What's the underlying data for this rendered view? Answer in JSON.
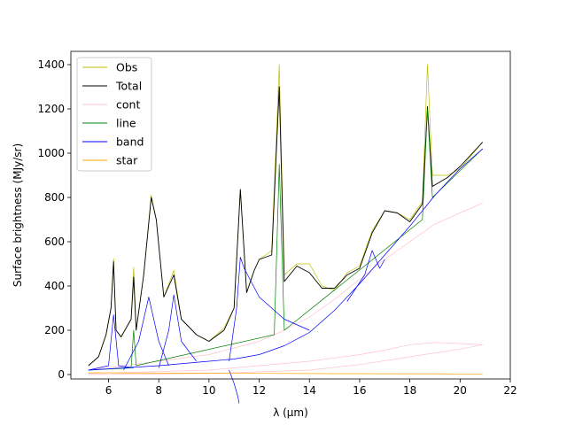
{
  "chart_data": {
    "type": "line",
    "title": "",
    "xlabel": "λ (μm)",
    "ylabel": "Surface brightness (MJy/sr)",
    "xlim": [
      4.5,
      22
    ],
    "ylim": [
      -20,
      1460
    ],
    "xticks": [
      6,
      8,
      10,
      12,
      14,
      16,
      18,
      20,
      22
    ],
    "yticks": [
      0,
      200,
      400,
      600,
      800,
      1000,
      1200,
      1400
    ],
    "grid": false,
    "legend_position": "top-left",
    "legend": [
      {
        "name": "Obs",
        "color": "#bfbf00"
      },
      {
        "name": "Total",
        "color": "#000000"
      },
      {
        "name": "cont",
        "color": "#ffc0cb"
      },
      {
        "name": "line",
        "color": "#008000"
      },
      {
        "name": "band",
        "color": "#0000ff"
      },
      {
        "name": "star",
        "color": "#ffa500"
      }
    ],
    "series": [
      {
        "name": "Obs",
        "color": "#bfbf00",
        "x": [
          5.2,
          5.6,
          5.9,
          6.1,
          6.2,
          6.3,
          6.5,
          6.9,
          7.0,
          7.1,
          7.4,
          7.7,
          7.9,
          8.2,
          8.6,
          8.9,
          9.5,
          10.0,
          10.6,
          11.0,
          11.25,
          11.5,
          11.8,
          12.0,
          12.5,
          12.8,
          13.0,
          13.5,
          14.0,
          14.5,
          15.0,
          15.5,
          16.0,
          16.5,
          17.0,
          17.5,
          18.0,
          18.5,
          18.7,
          18.9,
          19.5,
          20.0,
          20.9
        ],
        "y": [
          40,
          80,
          180,
          300,
          525,
          200,
          170,
          250,
          485,
          200,
          450,
          810,
          700,
          350,
          470,
          250,
          180,
          150,
          210,
          300,
          840,
          370,
          470,
          520,
          560,
          1400,
          450,
          500,
          500,
          400,
          380,
          460,
          490,
          650,
          740,
          730,
          700,
          780,
          1400,
          900,
          900,
          930,
          1050
        ]
      },
      {
        "name": "Total",
        "color": "#000000",
        "x": [
          5.2,
          5.6,
          5.9,
          6.1,
          6.2,
          6.3,
          6.5,
          6.9,
          7.0,
          7.1,
          7.4,
          7.7,
          7.9,
          8.2,
          8.6,
          8.9,
          9.5,
          10.0,
          10.6,
          11.0,
          11.25,
          11.5,
          11.8,
          12.0,
          12.5,
          12.8,
          13.0,
          13.5,
          14.0,
          14.5,
          15.0,
          15.5,
          16.0,
          16.5,
          17.0,
          17.5,
          18.0,
          18.5,
          18.7,
          18.9,
          19.5,
          20.0,
          20.9
        ],
        "y": [
          40,
          80,
          180,
          300,
          510,
          200,
          170,
          250,
          440,
          200,
          450,
          800,
          700,
          350,
          450,
          250,
          180,
          150,
          200,
          300,
          835,
          370,
          470,
          520,
          540,
          1300,
          420,
          490,
          460,
          390,
          390,
          450,
          480,
          640,
          740,
          730,
          690,
          770,
          1210,
          850,
          890,
          940,
          1050
        ]
      },
      {
        "name": "cont",
        "color": "#ffc0cb",
        "x": [
          5.2,
          8.0,
          10.0,
          12.0,
          13.0,
          14.0,
          15.0,
          16.0,
          17.0,
          18.0,
          19.0,
          20.0,
          20.9
        ],
        "y": [
          20,
          60,
          90,
          150,
          200,
          260,
          340,
          430,
          520,
          600,
          680,
          730,
          775
        ]
      },
      {
        "name": "cont",
        "color": "#ffc0cb",
        "x": [
          5.2,
          10,
          12,
          14,
          16,
          17,
          18,
          19,
          20,
          20.9
        ],
        "y": [
          5,
          20,
          40,
          60,
          90,
          110,
          135,
          145,
          140,
          135
        ]
      },
      {
        "name": "cont",
        "color": "#ffc0cb",
        "x": [
          5.2,
          10,
          14,
          16,
          18,
          20,
          20.9
        ],
        "y": [
          0,
          5,
          20,
          45,
          80,
          115,
          135
        ]
      },
      {
        "name": "line",
        "color": "#008000",
        "x": [
          5.2,
          6.9,
          7.0,
          7.1,
          12.6,
          12.8,
          13.0,
          18.5,
          18.7,
          18.9,
          20.9
        ],
        "y": [
          20,
          30,
          200,
          40,
          180,
          950,
          200,
          700,
          1200,
          800,
          1020
        ]
      },
      {
        "name": "band",
        "color": "#0000ff",
        "x": [
          5.2,
          8.0,
          10.0,
          11.0,
          12.0,
          13.0,
          14.0,
          15.0,
          16.0,
          17.0,
          18.0,
          19.0,
          20.0,
          20.9
        ],
        "y": [
          20,
          40,
          60,
          70,
          90,
          130,
          190,
          290,
          410,
          540,
          670,
          810,
          930,
          1020
        ]
      },
      {
        "name": "band",
        "color": "#0000ff",
        "x": [
          5.2,
          6.0,
          6.2,
          6.4,
          7.0
        ],
        "y": [
          20,
          40,
          270,
          40,
          30
        ]
      },
      {
        "name": "band",
        "color": "#0000ff",
        "x": [
          6.6,
          7.2,
          7.6,
          8.0,
          8.4
        ],
        "y": [
          20,
          150,
          350,
          150,
          40
        ]
      },
      {
        "name": "band",
        "color": "#0000ff",
        "x": [
          8.0,
          8.4,
          8.6,
          8.9,
          9.5
        ],
        "y": [
          30,
          200,
          360,
          150,
          60
        ]
      },
      {
        "name": "band",
        "color": "#0000ff",
        "x": [
          10.8,
          11.1,
          11.25,
          11.4,
          12.0,
          13.0,
          14.0
        ],
        "y": [
          60,
          300,
          530,
          480,
          350,
          250,
          200
        ]
      },
      {
        "name": "band",
        "color": "#0000ff",
        "x": [
          15.5,
          16.2,
          16.5,
          16.8,
          17.0
        ],
        "y": [
          330,
          450,
          560,
          480,
          520
        ]
      },
      {
        "name": "band",
        "color": "#0000ff",
        "x": [
          10.8,
          11.0,
          11.15,
          11.2
        ],
        "y": [
          20,
          -40,
          -100,
          -130
        ]
      },
      {
        "name": "star",
        "color": "#ffa500",
        "x": [
          5.2,
          10,
          15,
          20,
          20.9
        ],
        "y": [
          8,
          6,
          4,
          3,
          3
        ]
      }
    ]
  }
}
